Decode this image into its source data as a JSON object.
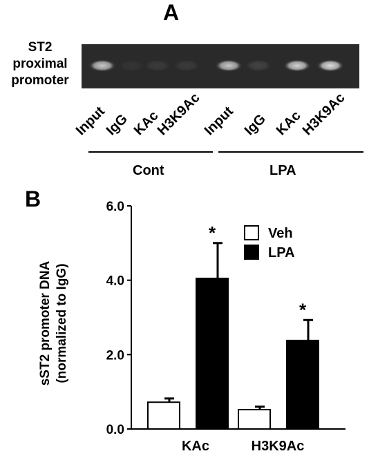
{
  "panel_a": {
    "letter": "A",
    "row_label": [
      "ST2",
      "proximal",
      "promoter"
    ],
    "lanes": [
      "Input",
      "IgG",
      "KAc",
      "H3K9Ac",
      "Input",
      "IgG",
      "KAc",
      "H3K9Ac"
    ],
    "groups": [
      "Cont",
      "LPA"
    ],
    "band_intensities": [
      0.75,
      0.05,
      0.08,
      0.08,
      0.75,
      0.12,
      0.8,
      0.85
    ]
  },
  "panel_b": {
    "letter": "B",
    "ylabel_line1": "sST2 promoter DNA",
    "ylabel_line2": "(normalized to IgG)"
  },
  "chart_data": {
    "type": "bar",
    "categories": [
      "KAc",
      "H3K9Ac"
    ],
    "series": [
      {
        "name": "Veh",
        "values": [
          0.72,
          0.52
        ],
        "errors": [
          0.1,
          0.08
        ],
        "color": "#ffffff"
      },
      {
        "name": "LPA",
        "values": [
          4.05,
          2.38
        ],
        "errors": [
          0.95,
          0.55
        ],
        "color": "#000000"
      }
    ],
    "significance": [
      "*",
      "*"
    ],
    "yticks": [
      "0.0",
      "2.0",
      "4.0",
      "6.0"
    ],
    "ylim": [
      0,
      6
    ],
    "legend_position": "top-right"
  }
}
